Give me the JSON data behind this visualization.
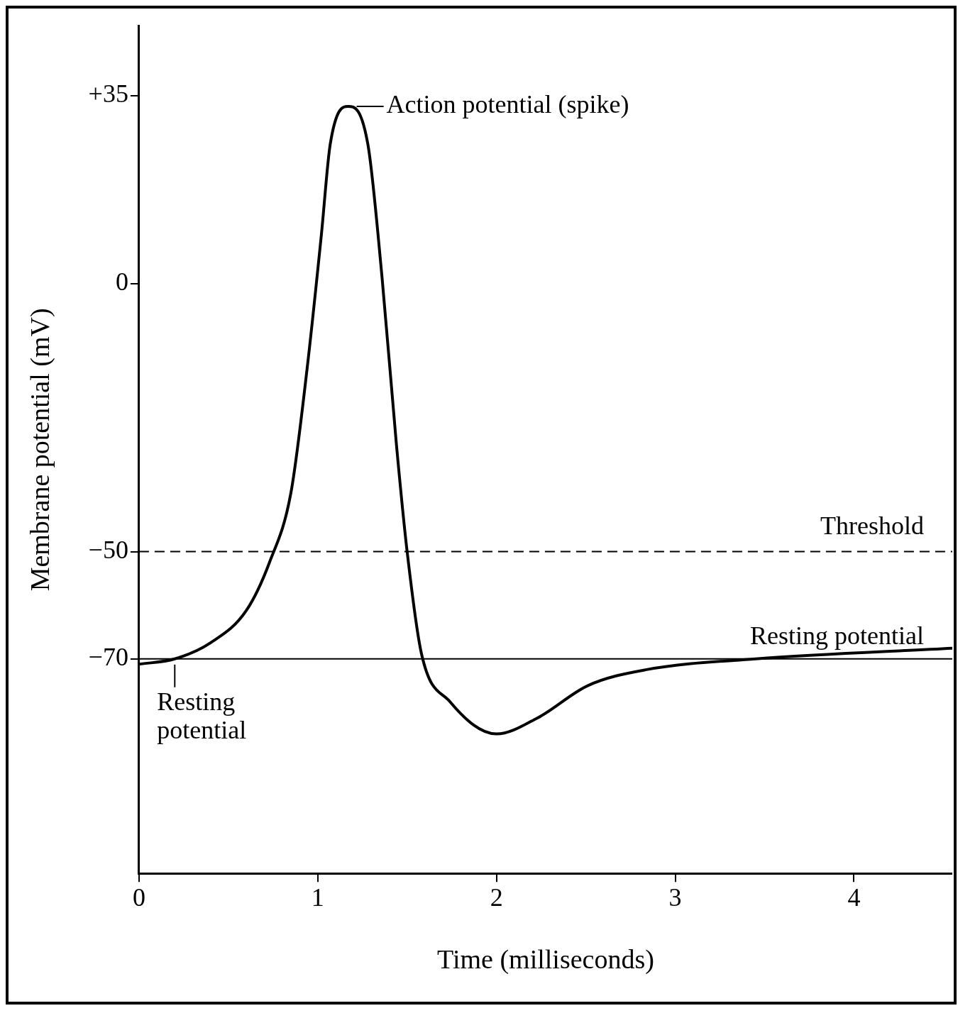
{
  "chart_data": {
    "type": "line",
    "xlabel": "Time (milliseconds)",
    "ylabel": "Membrane potential (mV)",
    "x": [
      0,
      0.2,
      0.4,
      0.6,
      0.73,
      0.85,
      0.94,
      1.02,
      1.07,
      1.17,
      1.28,
      1.36,
      1.44,
      1.5,
      1.58,
      1.74,
      2.0,
      2.23,
      2.51,
      2.84,
      3.45,
      4.55
    ],
    "series": [
      {
        "color": "#000000",
        "values": [
          -71,
          -70,
          -67,
          -61,
          -52,
          -39,
          -16,
          9,
          26,
          33,
          26,
          1,
          -30,
          -50,
          -69,
          -78,
          -84,
          -81,
          -75,
          -72,
          -70,
          -68
        ]
      }
    ],
    "xlim": [
      0,
      4.55
    ],
    "xticks": [
      0,
      1,
      2,
      3,
      4
    ],
    "ylim": [
      -110,
      48
    ],
    "yticks": [
      {
        "value": 35,
        "label": "+35"
      },
      0,
      {
        "value": -50,
        "label": "−50"
      },
      {
        "value": -70,
        "label": "−70"
      }
    ],
    "grid": false,
    "legend": false,
    "marker": "none",
    "line_style": "solid",
    "ref_lines": [
      {
        "axis": "y",
        "value": -50,
        "label": "Threshold",
        "line_style": "dashed",
        "color": "#000000"
      },
      {
        "axis": "y",
        "value": -70,
        "label": "Resting potential",
        "line_style": "solid",
        "color": "#000000"
      }
    ],
    "annotations": [
      {
        "text": "Action potential (spike)",
        "x": 1.17,
        "y": 33
      },
      {
        "text": "Resting potential",
        "x": 0.2,
        "y": -70
      }
    ]
  }
}
